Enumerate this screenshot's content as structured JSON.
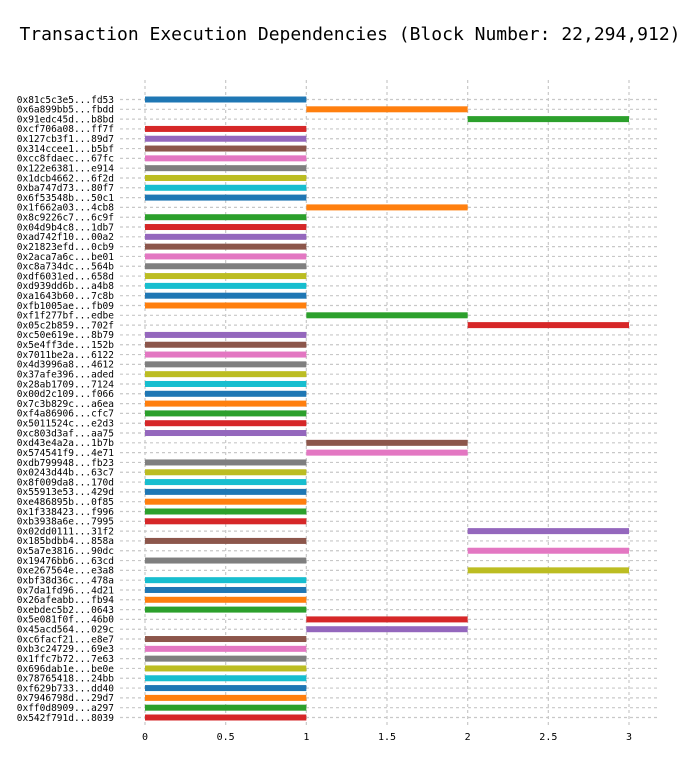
{
  "chart_data": {
    "type": "bar",
    "orientation": "horizontal-gantt",
    "title": "Transaction Execution Dependencies (Block Number: 22,294,912)",
    "xlim": [
      0,
      3
    ],
    "x_ticks": [
      "0",
      "0.5",
      "1",
      "1.5",
      "2",
      "2.5",
      "3"
    ],
    "grid": true,
    "transactions": [
      {
        "label": "0x81c5c3e5...fd53",
        "start": 0,
        "end": 1,
        "color": "#1f77b4"
      },
      {
        "label": "0x6a899bb5...fbdd",
        "start": 1,
        "end": 2,
        "color": "#ff7f0e"
      },
      {
        "label": "0x91edc45d...b8bd",
        "start": 2,
        "end": 3,
        "color": "#2ca02c"
      },
      {
        "label": "0xcf706a08...ff7f",
        "start": 0,
        "end": 1,
        "color": "#d62728"
      },
      {
        "label": "0x127cb3f1...89d7",
        "start": 0,
        "end": 1,
        "color": "#9467bd"
      },
      {
        "label": "0x314ccee1...b5bf",
        "start": 0,
        "end": 1,
        "color": "#8c564b"
      },
      {
        "label": "0xcc8fdaec...67fc",
        "start": 0,
        "end": 1,
        "color": "#e377c2"
      },
      {
        "label": "0x122e6381...e914",
        "start": 0,
        "end": 1,
        "color": "#7f7f7f"
      },
      {
        "label": "0x1dcb4662...6f2d",
        "start": 0,
        "end": 1,
        "color": "#bcbd22"
      },
      {
        "label": "0xba747d73...80f7",
        "start": 0,
        "end": 1,
        "color": "#17becf"
      },
      {
        "label": "0x6f53548b...50c1",
        "start": 0,
        "end": 1,
        "color": "#1f77b4"
      },
      {
        "label": "0x1f662a03...4cb8",
        "start": 1,
        "end": 2,
        "color": "#ff7f0e"
      },
      {
        "label": "0x8c9226c7...6c9f",
        "start": 0,
        "end": 1,
        "color": "#2ca02c"
      },
      {
        "label": "0x04d9b4c8...1db7",
        "start": 0,
        "end": 1,
        "color": "#d62728"
      },
      {
        "label": "0xad742f10...00a2",
        "start": 0,
        "end": 1,
        "color": "#9467bd"
      },
      {
        "label": "0x21823efd...0cb9",
        "start": 0,
        "end": 1,
        "color": "#8c564b"
      },
      {
        "label": "0x2aca7a6c...be01",
        "start": 0,
        "end": 1,
        "color": "#e377c2"
      },
      {
        "label": "0xc8a734dc...564b",
        "start": 0,
        "end": 1,
        "color": "#7f7f7f"
      },
      {
        "label": "0xdf6031ed...658d",
        "start": 0,
        "end": 1,
        "color": "#bcbd22"
      },
      {
        "label": "0xd939dd6b...a4b8",
        "start": 0,
        "end": 1,
        "color": "#17becf"
      },
      {
        "label": "0xa1643b60...7c8b",
        "start": 0,
        "end": 1,
        "color": "#1f77b4"
      },
      {
        "label": "0xfb1005ae...fb09",
        "start": 0,
        "end": 1,
        "color": "#ff7f0e"
      },
      {
        "label": "0xf1f277bf...edbe",
        "start": 1,
        "end": 2,
        "color": "#2ca02c"
      },
      {
        "label": "0x05c2b859...702f",
        "start": 2,
        "end": 3,
        "color": "#d62728"
      },
      {
        "label": "0xc50e619e...8b79",
        "start": 0,
        "end": 1,
        "color": "#9467bd"
      },
      {
        "label": "0x5e4ff3de...152b",
        "start": 0,
        "end": 1,
        "color": "#8c564b"
      },
      {
        "label": "0x7011be2a...6122",
        "start": 0,
        "end": 1,
        "color": "#e377c2"
      },
      {
        "label": "0x4d3996a8...4612",
        "start": 0,
        "end": 1,
        "color": "#7f7f7f"
      },
      {
        "label": "0x37afe396...aded",
        "start": 0,
        "end": 1,
        "color": "#bcbd22"
      },
      {
        "label": "0x28ab1709...7124",
        "start": 0,
        "end": 1,
        "color": "#17becf"
      },
      {
        "label": "0x00d2c109...f066",
        "start": 0,
        "end": 1,
        "color": "#1f77b4"
      },
      {
        "label": "0x7c3b829c...a6ea",
        "start": 0,
        "end": 1,
        "color": "#ff7f0e"
      },
      {
        "label": "0xf4a86906...cfc7",
        "start": 0,
        "end": 1,
        "color": "#2ca02c"
      },
      {
        "label": "0x5011524c...e2d3",
        "start": 0,
        "end": 1,
        "color": "#d62728"
      },
      {
        "label": "0xc803d3af...aa75",
        "start": 0,
        "end": 1,
        "color": "#9467bd"
      },
      {
        "label": "0xd43e4a2a...1b7b",
        "start": 1,
        "end": 2,
        "color": "#8c564b"
      },
      {
        "label": "0x574541f9...4e71",
        "start": 1,
        "end": 2,
        "color": "#e377c2"
      },
      {
        "label": "0xdb799948...fb23",
        "start": 0,
        "end": 1,
        "color": "#7f7f7f"
      },
      {
        "label": "0x0243d44b...63c7",
        "start": 0,
        "end": 1,
        "color": "#bcbd22"
      },
      {
        "label": "0x8f009da8...170d",
        "start": 0,
        "end": 1,
        "color": "#17becf"
      },
      {
        "label": "0x55913e53...429d",
        "start": 0,
        "end": 1,
        "color": "#1f77b4"
      },
      {
        "label": "0xe486895b...0f85",
        "start": 0,
        "end": 1,
        "color": "#ff7f0e"
      },
      {
        "label": "0x1f338423...f996",
        "start": 0,
        "end": 1,
        "color": "#2ca02c"
      },
      {
        "label": "0xb3938a6e...7995",
        "start": 0,
        "end": 1,
        "color": "#d62728"
      },
      {
        "label": "0x02dd0111...31f2",
        "start": 2,
        "end": 3,
        "color": "#9467bd"
      },
      {
        "label": "0x185bdbb4...858a",
        "start": 0,
        "end": 1,
        "color": "#8c564b"
      },
      {
        "label": "0x5a7e3816...90dc",
        "start": 2,
        "end": 3,
        "color": "#e377c2"
      },
      {
        "label": "0x19476bb6...63cd",
        "start": 0,
        "end": 1,
        "color": "#7f7f7f"
      },
      {
        "label": "0xe267564e...e3a8",
        "start": 2,
        "end": 3,
        "color": "#bcbd22"
      },
      {
        "label": "0xbf38d36c...478a",
        "start": 0,
        "end": 1,
        "color": "#17becf"
      },
      {
        "label": "0x7da1fd96...4d21",
        "start": 0,
        "end": 1,
        "color": "#1f77b4"
      },
      {
        "label": "0x26afeabb...fb94",
        "start": 0,
        "end": 1,
        "color": "#ff7f0e"
      },
      {
        "label": "0xebdec5b2...0643",
        "start": 0,
        "end": 1,
        "color": "#2ca02c"
      },
      {
        "label": "0x5e081f0f...46b0",
        "start": 1,
        "end": 2,
        "color": "#d62728"
      },
      {
        "label": "0x45acd564...029c",
        "start": 1,
        "end": 2,
        "color": "#9467bd"
      },
      {
        "label": "0xc6facf21...e8e7",
        "start": 0,
        "end": 1,
        "color": "#8c564b"
      },
      {
        "label": "0xb3c24729...69e3",
        "start": 0,
        "end": 1,
        "color": "#e377c2"
      },
      {
        "label": "0x1ffc7b72...7e63",
        "start": 0,
        "end": 1,
        "color": "#7f7f7f"
      },
      {
        "label": "0x696dab1e...be0e",
        "start": 0,
        "end": 1,
        "color": "#bcbd22"
      },
      {
        "label": "0x78765418...24bb",
        "start": 0,
        "end": 1,
        "color": "#17becf"
      },
      {
        "label": "0xf629b733...dd40",
        "start": 0,
        "end": 1,
        "color": "#1f77b4"
      },
      {
        "label": "0x7946798d...29d7",
        "start": 0,
        "end": 1,
        "color": "#ff7f0e"
      },
      {
        "label": "0xff0d8909...a297",
        "start": 0,
        "end": 1,
        "color": "#2ca02c"
      },
      {
        "label": "0x542f791d...8039",
        "start": 0,
        "end": 1,
        "color": "#d62728"
      }
    ]
  }
}
